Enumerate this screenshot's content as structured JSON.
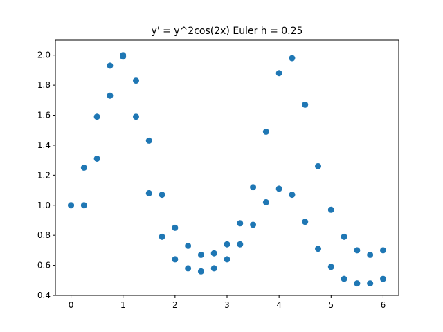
{
  "chart_data": {
    "type": "scatter",
    "title": "y' = y^2cos(2x) Euler h = 0.25",
    "xlabel": "",
    "ylabel": "",
    "xlim": [
      -0.3,
      6.3
    ],
    "ylim": [
      0.4,
      2.1
    ],
    "xticks": [
      "0",
      "1",
      "2",
      "3",
      "4",
      "5",
      "6"
    ],
    "yticks": [
      "0.4",
      "0.6",
      "0.8",
      "1.0",
      "1.2",
      "1.4",
      "1.6",
      "1.8",
      "2.0"
    ],
    "grid": false,
    "marker_color": "#1f77b4",
    "points": [
      [
        0.0,
        1.0
      ],
      [
        0.0,
        1.0
      ],
      [
        0.25,
        1.25
      ],
      [
        0.25,
        1.0
      ],
      [
        0.5,
        1.59
      ],
      [
        0.5,
        1.31
      ],
      [
        0.75,
        1.93
      ],
      [
        0.75,
        1.73
      ],
      [
        1.0,
        2.0
      ],
      [
        1.0,
        1.99
      ],
      [
        1.25,
        1.83
      ],
      [
        1.25,
        1.59
      ],
      [
        1.5,
        1.43
      ],
      [
        1.5,
        1.08
      ],
      [
        1.75,
        1.07
      ],
      [
        1.75,
        0.79
      ],
      [
        2.0,
        0.85
      ],
      [
        2.0,
        0.64
      ],
      [
        2.25,
        0.73
      ],
      [
        2.25,
        0.58
      ],
      [
        2.5,
        0.67
      ],
      [
        2.5,
        0.56
      ],
      [
        2.75,
        0.68
      ],
      [
        2.75,
        0.58
      ],
      [
        3.0,
        0.74
      ],
      [
        3.0,
        0.64
      ],
      [
        3.25,
        0.88
      ],
      [
        3.25,
        0.74
      ],
      [
        3.5,
        1.12
      ],
      [
        3.5,
        0.87
      ],
      [
        3.75,
        1.49
      ],
      [
        3.75,
        1.02
      ],
      [
        4.0,
        1.88
      ],
      [
        4.0,
        1.11
      ],
      [
        4.25,
        1.98
      ],
      [
        4.25,
        1.07
      ],
      [
        4.5,
        1.67
      ],
      [
        4.5,
        0.89
      ],
      [
        4.75,
        1.26
      ],
      [
        4.75,
        0.71
      ],
      [
        5.0,
        0.97
      ],
      [
        5.0,
        0.59
      ],
      [
        5.25,
        0.79
      ],
      [
        5.25,
        0.51
      ],
      [
        5.5,
        0.7
      ],
      [
        5.5,
        0.48
      ],
      [
        5.75,
        0.67
      ],
      [
        5.75,
        0.48
      ],
      [
        6.0,
        0.7
      ],
      [
        6.0,
        0.51
      ]
    ]
  }
}
